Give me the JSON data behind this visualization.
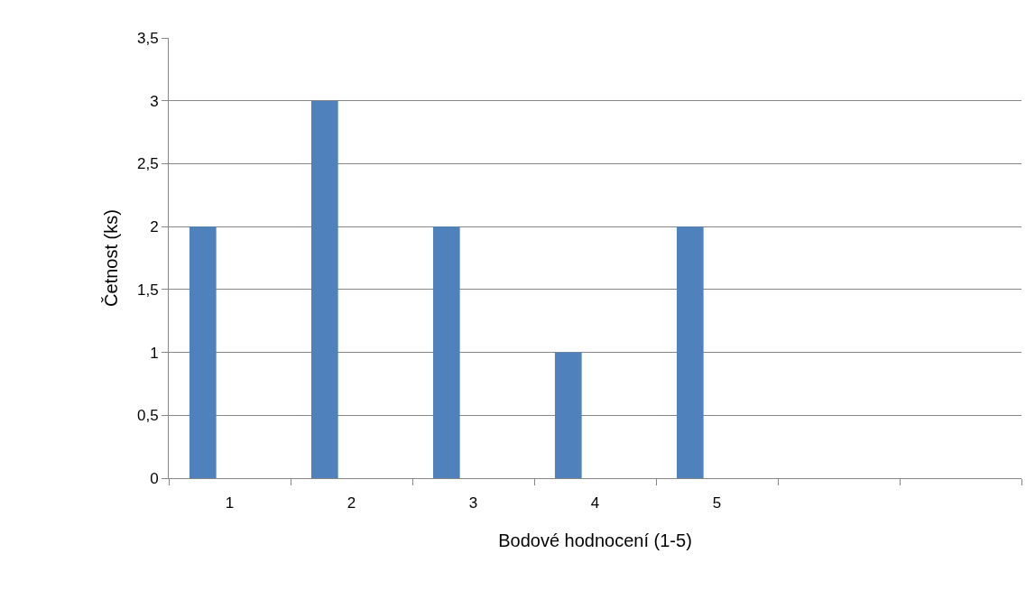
{
  "chart_data": {
    "type": "bar",
    "xlabel": "Bodové hodnocení (1-5)",
    "ylabel": "Četnost (ks)",
    "categories": [
      "1",
      "2",
      "3",
      "4",
      "5",
      null,
      null
    ],
    "values": [
      2,
      3,
      2,
      1,
      2,
      null,
      null
    ],
    "color": "#4f81bd",
    "ylim": [
      0,
      3.5
    ],
    "yticks": [
      0,
      {
        "value": 0.5,
        "label": "0,5"
      },
      1,
      {
        "value": 1.5,
        "label": "1,5"
      },
      2,
      {
        "value": 2.5,
        "label": "2,5"
      },
      3,
      {
        "value": 3.5,
        "label": "3,5"
      }
    ],
    "grid": "y",
    "legend": false
  }
}
